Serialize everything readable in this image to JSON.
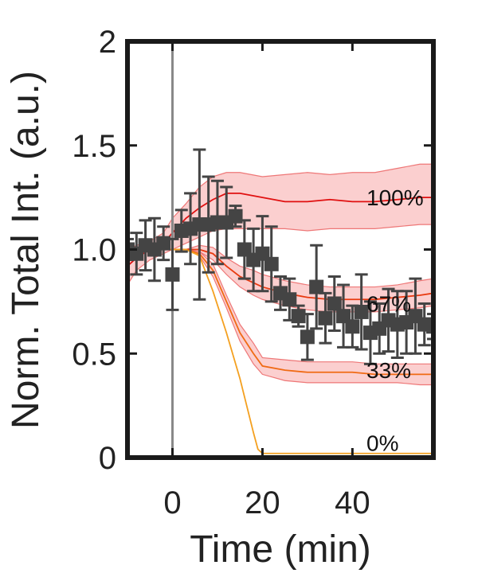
{
  "chart_data": {
    "type": "line",
    "title": "",
    "xlabel": "Time (min)",
    "ylabel": "Norm. Total Int. (a.u.)",
    "xlim": [
      -10,
      58
    ],
    "ylim": [
      0,
      2
    ],
    "xticks": [
      0,
      20,
      40
    ],
    "xtick_labels": [
      "0",
      "20",
      "40"
    ],
    "yticks": [
      0,
      0.5,
      1.0,
      1.5,
      2
    ],
    "ytick_labels": [
      "0",
      "0.5",
      "1.0",
      "1.5",
      "2"
    ],
    "grid": false,
    "marker_at_x": 0,
    "colors": {
      "s100": "#e01010",
      "s67": "#e83a10",
      "s33": "#f06a14",
      "s0": "#f4a020",
      "band": "#f7a8a8",
      "band_stroke": "#ee7777",
      "data": "#444444",
      "vline": "#888888",
      "axis": "#1a1a1a"
    },
    "series": [
      {
        "name": "100%",
        "x": [
          -10,
          -8,
          -5,
          -2,
          0,
          3,
          6,
          9,
          12,
          15,
          20,
          25,
          30,
          35,
          40,
          45,
          50,
          55,
          58
        ],
        "values": [
          0.92,
          0.96,
          1.0,
          1.03,
          1.08,
          1.15,
          1.2,
          1.24,
          1.27,
          1.27,
          1.25,
          1.23,
          1.23,
          1.24,
          1.23,
          1.23,
          1.24,
          1.25,
          1.25
        ],
        "lower": [
          0.83,
          0.9,
          0.95,
          0.98,
          1.0,
          1.03,
          1.06,
          1.09,
          1.1,
          1.1,
          1.1,
          1.1,
          1.09,
          1.1,
          1.1,
          1.1,
          1.11,
          1.12,
          1.12
        ],
        "upper": [
          1.0,
          1.02,
          1.04,
          1.08,
          1.15,
          1.22,
          1.3,
          1.35,
          1.37,
          1.37,
          1.35,
          1.36,
          1.37,
          1.36,
          1.37,
          1.37,
          1.39,
          1.41,
          1.41
        ]
      },
      {
        "name": "67%",
        "x": [
          -10,
          -5,
          0,
          3,
          6,
          9,
          12,
          15,
          18,
          20,
          25,
          30,
          35,
          40,
          45,
          50,
          55,
          58
        ],
        "values": [
          1.0,
          1.0,
          1.0,
          1.0,
          1.0,
          0.98,
          0.92,
          0.87,
          0.84,
          0.82,
          0.79,
          0.77,
          0.76,
          0.76,
          0.76,
          0.77,
          0.78,
          0.79
        ],
        "lower": [
          1.0,
          1.0,
          1.0,
          1.0,
          0.99,
          0.95,
          0.88,
          0.82,
          0.78,
          0.76,
          0.73,
          0.71,
          0.7,
          0.7,
          0.7,
          0.71,
          0.72,
          0.73
        ],
        "upper": [
          1.0,
          1.0,
          1.0,
          1.0,
          1.02,
          1.01,
          0.96,
          0.92,
          0.9,
          0.88,
          0.85,
          0.83,
          0.82,
          0.82,
          0.82,
          0.83,
          0.85,
          0.86
        ]
      },
      {
        "name": "33%",
        "x": [
          -10,
          -5,
          0,
          3,
          6,
          9,
          12,
          15,
          18,
          20,
          25,
          30,
          35,
          40,
          45,
          50,
          55,
          58
        ],
        "values": [
          1.0,
          1.0,
          1.0,
          1.0,
          0.98,
          0.9,
          0.75,
          0.6,
          0.5,
          0.44,
          0.42,
          0.41,
          0.41,
          0.41,
          0.4,
          0.4,
          0.4,
          0.4
        ],
        "lower": [
          1.0,
          1.0,
          1.0,
          1.0,
          0.97,
          0.87,
          0.72,
          0.56,
          0.45,
          0.4,
          0.37,
          0.36,
          0.36,
          0.36,
          0.36,
          0.36,
          0.35,
          0.35
        ],
        "upper": [
          1.0,
          1.0,
          1.0,
          1.0,
          0.99,
          0.93,
          0.78,
          0.64,
          0.55,
          0.48,
          0.47,
          0.46,
          0.46,
          0.46,
          0.45,
          0.45,
          0.45,
          0.45
        ]
      },
      {
        "name": "0%",
        "x": [
          -10,
          -5,
          0,
          3,
          6,
          9,
          12,
          15,
          18,
          19,
          20,
          25,
          30,
          35,
          40,
          45,
          50,
          55,
          58
        ],
        "values": [
          1.0,
          1.0,
          1.0,
          1.0,
          0.97,
          0.8,
          0.6,
          0.38,
          0.12,
          0.04,
          0.02,
          0.02,
          0.02,
          0.02,
          0.02,
          0.02,
          0.02,
          0.02,
          0.02
        ]
      }
    ],
    "scatter": {
      "x": [
        -10,
        -8,
        -6,
        -4,
        -2,
        0,
        2,
        4,
        6,
        8,
        10,
        12,
        14,
        16,
        18,
        20,
        22,
        24,
        26,
        28,
        30,
        32,
        34,
        36,
        38,
        40,
        42,
        44,
        46,
        48,
        50,
        52,
        54,
        56,
        58
      ],
      "y": [
        1.0,
        0.98,
        1.02,
        1.0,
        1.03,
        0.88,
        1.09,
        1.1,
        1.12,
        1.12,
        1.13,
        1.13,
        1.16,
        1.0,
        0.95,
        0.98,
        0.93,
        0.79,
        0.76,
        0.68,
        0.58,
        0.82,
        0.67,
        0.74,
        0.68,
        0.63,
        0.7,
        0.6,
        0.62,
        0.66,
        0.64,
        0.65,
        0.68,
        0.64,
        0.63
      ],
      "err": [
        0.05,
        0.1,
        0.12,
        0.15,
        0.08,
        0.17,
        0.1,
        0.17,
        0.36,
        0.23,
        0.2,
        0.17,
        0.05,
        0.14,
        0.15,
        0.18,
        0.18,
        0.08,
        0.1,
        0.05,
        0.11,
        0.2,
        0.12,
        0.13,
        0.15,
        0.1,
        0.18,
        0.15,
        0.12,
        0.15,
        0.16,
        0.15,
        0.18,
        0.1,
        0.06
      ]
    }
  }
}
